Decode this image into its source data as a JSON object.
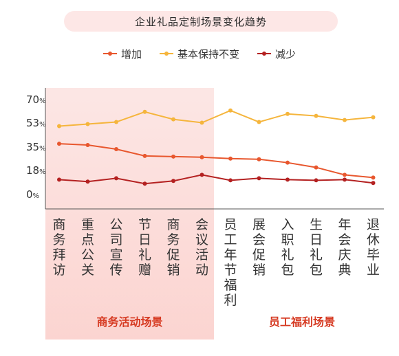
{
  "chart_data": {
    "type": "line",
    "title": "企业礼品定制场景变化趋势",
    "categories": [
      "商务拜访",
      "重点公关",
      "公司宣传",
      "节日礼赠",
      "商务促销",
      "会议活动",
      "员工年节福利",
      "展会促销",
      "入职礼包",
      "生日礼包",
      "年会庆典",
      "退休毕业"
    ],
    "series": [
      {
        "name": "增加",
        "color": "#e8572e",
        "values": [
          38,
          37,
          34,
          29,
          28.5,
          28,
          27,
          26.5,
          24,
          20.5,
          15,
          13
        ]
      },
      {
        "name": "基本保持不变",
        "color": "#f5b53c",
        "values": [
          51,
          52.5,
          54,
          61.5,
          56,
          53.5,
          62.5,
          54,
          60,
          58.5,
          55.5,
          57.5
        ]
      },
      {
        "name": "减少",
        "color": "#b42121",
        "values": [
          11.5,
          10,
          12.5,
          8.5,
          10.5,
          15,
          11,
          12.5,
          11.5,
          11,
          11.5,
          9
        ]
      }
    ],
    "yticks": [
      {
        "num": "70",
        "unit": "%"
      },
      {
        "num": "53",
        "unit": "%"
      },
      {
        "num": "35",
        "unit": "%"
      },
      {
        "num": "18",
        "unit": "%"
      },
      {
        "num": "0",
        "unit": "%"
      }
    ],
    "ytick_values": [
      70,
      53,
      35,
      18,
      0
    ],
    "ylim": [
      0,
      70
    ],
    "groups": [
      {
        "label": "商务活动场景",
        "from": 0,
        "to": 5
      },
      {
        "label": "员工福利场景",
        "from": 6,
        "to": 11
      }
    ],
    "grid": false,
    "legend_position": "top-center"
  }
}
